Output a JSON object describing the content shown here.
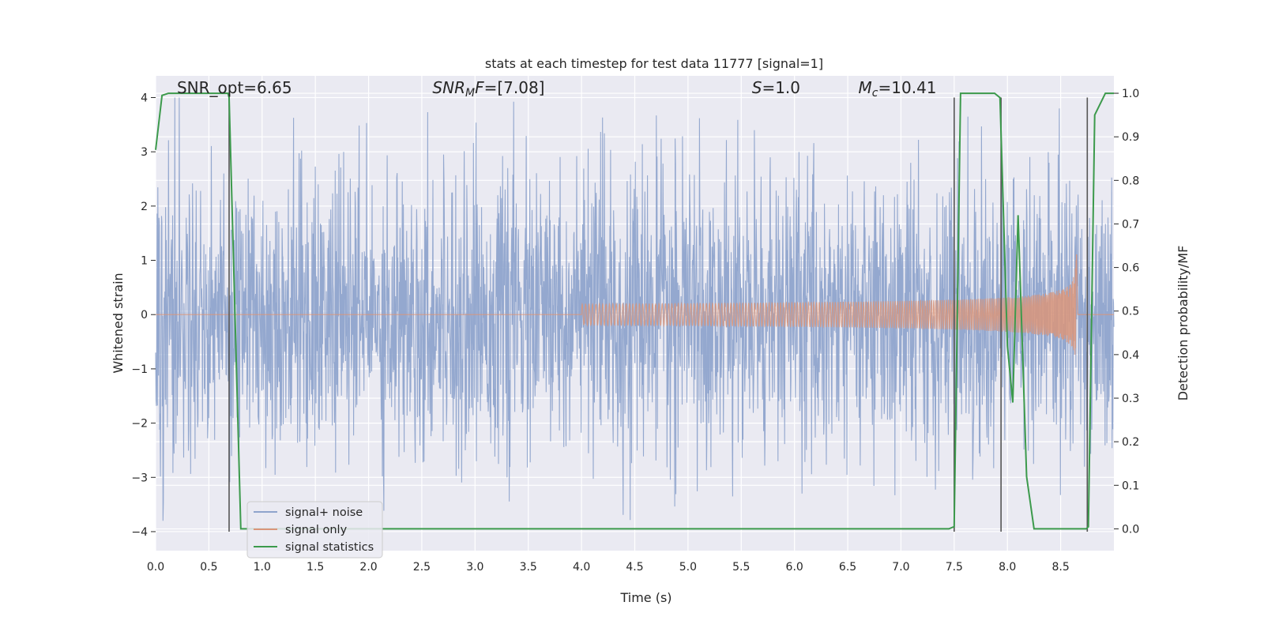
{
  "chart_data": {
    "type": "line",
    "title": "stats at each timestep for test data 11777 [signal=1]",
    "xlabel": "Time (s)",
    "ylabel": "Whitened strain",
    "ylabel_right": "Detection probability/MF",
    "xlim": [
      0.0,
      9.0
    ],
    "ylim": [
      -4.35,
      4.4
    ],
    "ylim_right": [
      -0.05,
      1.04
    ],
    "x_ticks": [
      0.0,
      0.5,
      1.0,
      1.5,
      2.0,
      2.5,
      3.0,
      3.5,
      4.0,
      4.5,
      5.0,
      5.5,
      6.0,
      6.5,
      7.0,
      7.5,
      8.0,
      8.5
    ],
    "x_tick_labels": [
      "0.0",
      "0.5",
      "1.0",
      "1.5",
      "2.0",
      "2.5",
      "3.0",
      "3.5",
      "4.0",
      "4.5",
      "5.0",
      "5.5",
      "6.0",
      "6.5",
      "7.0",
      "7.5",
      "8.0",
      "8.5"
    ],
    "y_ticks": [
      -4,
      -3,
      -2,
      -1,
      0,
      1,
      2,
      3,
      4
    ],
    "y_tick_labels": [
      "−4",
      "−3",
      "−2",
      "−1",
      "0",
      "1",
      "2",
      "3",
      "4"
    ],
    "y_ticks_right": [
      0.0,
      0.1,
      0.2,
      0.3,
      0.4,
      0.5,
      0.6,
      0.7,
      0.8,
      0.9,
      1.0
    ],
    "y_tick_labels_right": [
      "0.0",
      "0.1",
      "0.2",
      "0.3",
      "0.4",
      "0.5",
      "0.6",
      "0.7",
      "0.8",
      "0.9",
      "1.0"
    ],
    "grid": true,
    "legend_position": "lower-left",
    "annotations": [
      {
        "key": "snr_opt",
        "x": 0.2,
        "y": 4.05
      },
      {
        "key": "snr_mf",
        "x": 2.6,
        "y": 4.05
      },
      {
        "key": "s",
        "x": 5.6,
        "y": 4.05
      },
      {
        "key": "mc",
        "x": 6.6,
        "y": 4.05
      }
    ],
    "series": [
      {
        "name": "signal+ noise",
        "color": "#8fa4cc",
        "kind": "noise",
        "axis": "left",
        "typical_amplitude": 1.3,
        "peak_range": [
          -3.8,
          4.0
        ]
      },
      {
        "name": "signal only",
        "color": "#d9957a",
        "kind": "chirp",
        "axis": "left",
        "start_time": 4.0,
        "merger_time": 8.65,
        "peak_amplitude": 1.2
      },
      {
        "name": "signal statistics",
        "color": "#3c9a4c",
        "kind": "line",
        "axis": "right",
        "x": [
          0.0,
          0.06,
          0.12,
          0.68,
          0.69,
          0.8,
          7.45,
          7.5,
          7.56,
          7.88,
          7.93,
          8.0,
          8.05,
          8.1,
          8.18,
          8.25,
          8.74,
          8.76,
          8.82,
          8.92,
          9.0
        ],
        "y": [
          0.87,
          0.995,
          1.0,
          1.0,
          0.99,
          0.0,
          0.0,
          0.005,
          1.0,
          1.0,
          0.99,
          0.42,
          0.29,
          0.72,
          0.12,
          0.0,
          0.0,
          0.005,
          0.95,
          1.0,
          1.0
        ]
      }
    ],
    "vertical_markers": [
      {
        "x": 0.69,
        "y_range": [
          -4.0,
          4.0
        ]
      },
      {
        "x": 7.5,
        "y_range": [
          -4.0,
          4.0
        ]
      },
      {
        "x": 7.94,
        "y_range": [
          -4.0,
          4.0
        ]
      },
      {
        "x": 8.75,
        "y_range": [
          -4.0,
          4.0
        ]
      }
    ]
  },
  "annotation_text": {
    "snr_opt": "SNR_opt=6.65",
    "snr_mf_prefix": "SNR",
    "snr_mf_sub": "M",
    "snr_mf_suffix": "F=[7.08]",
    "s_prefix": "S",
    "s_suffix": "=1.0",
    "mc_prefix": "M",
    "mc_sub": "c",
    "mc_suffix": "=10.41"
  },
  "colors": {
    "figure_background": "#ffffff",
    "axes_background": "#eaeaf2",
    "grid": "#ffffff",
    "marker_line": "#555555"
  }
}
